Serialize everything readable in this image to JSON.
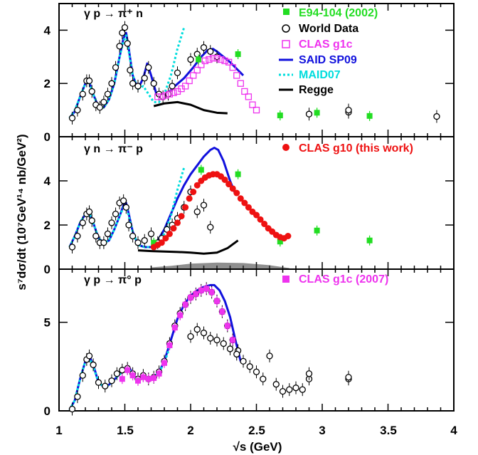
{
  "xlabel": "√s (GeV)",
  "ylabel": "s⁷dσ/dt (10⁷GeV¹⁴ nb/GeV²)",
  "x_ticks": [
    "1",
    "1.5",
    "2",
    "2.5",
    "3",
    "3.5",
    "4"
  ],
  "colors": {
    "e94": "#22dd22",
    "world": "#000000",
    "g1c": "#ee33ee",
    "said": "#1111dd",
    "maid": "#00dddd",
    "regge": "#000000",
    "g10": "#ee1111"
  },
  "chart_data": [
    {
      "type": "scatter",
      "reaction": "γ p → π⁺ n",
      "xlim": [
        1.0,
        4.0
      ],
      "ylim": [
        0,
        5.0
      ],
      "y_ticks": [
        {
          "v": 0,
          "label": "0"
        },
        {
          "v": 2,
          "label": "2"
        },
        {
          "v": 4,
          "label": "4"
        }
      ],
      "legend": [
        "E94-104 (2002)",
        "World Data",
        "CLAS g1c",
        "SAID SP09",
        "MAID07",
        "Regge"
      ],
      "series": [
        {
          "name": "World Data",
          "marker": "circle",
          "color": "world",
          "x": [
            1.1,
            1.14,
            1.18,
            1.21,
            1.23,
            1.25,
            1.28,
            1.31,
            1.34,
            1.37,
            1.4,
            1.43,
            1.46,
            1.48,
            1.5,
            1.52,
            1.54,
            1.56,
            1.6,
            1.65,
            1.68,
            1.72,
            1.76,
            1.79,
            1.83,
            1.86,
            1.9,
            2.0,
            2.05,
            2.1,
            2.15,
            2.2,
            2.9,
            3.2,
            3.2,
            3.87
          ],
          "y": [
            0.7,
            1.0,
            1.6,
            2.1,
            2.1,
            1.7,
            1.2,
            1.1,
            1.3,
            1.6,
            2.0,
            2.6,
            3.4,
            3.9,
            4.1,
            3.5,
            2.5,
            2.0,
            1.9,
            2.2,
            2.6,
            2.0,
            1.6,
            1.5,
            1.6,
            1.9,
            2.4,
            2.9,
            3.1,
            3.35,
            3.2,
            3.0,
            0.85,
            0.92,
            1.0,
            0.76
          ]
        },
        {
          "name": "CLAS g1c",
          "marker": "open-square",
          "color": "g1c",
          "x": [
            1.75,
            1.78,
            1.81,
            1.84,
            1.87,
            1.9,
            1.93,
            1.96,
            1.99,
            2.02,
            2.05,
            2.08,
            2.11,
            2.14,
            2.17,
            2.2,
            2.23,
            2.26,
            2.29,
            2.32,
            2.35,
            2.38,
            2.41,
            2.44,
            2.47,
            2.5
          ],
          "y": [
            1.5,
            1.5,
            1.55,
            1.6,
            1.65,
            1.7,
            1.8,
            1.9,
            2.1,
            2.3,
            2.5,
            2.7,
            2.85,
            2.9,
            2.95,
            2.95,
            2.9,
            2.85,
            2.8,
            2.6,
            2.3,
            2.0,
            1.7,
            1.5,
            1.2,
            1.0
          ]
        },
        {
          "name": "E94-104 (2002)",
          "marker": "filled-square",
          "color": "e94",
          "x": [
            2.06,
            2.36,
            2.68,
            2.96,
            3.36
          ],
          "y": [
            2.9,
            3.1,
            0.8,
            0.9,
            0.78
          ]
        },
        {
          "name": "SAID SP09",
          "marker": "line",
          "color": "said",
          "x": [
            1.08,
            1.12,
            1.16,
            1.2,
            1.23,
            1.26,
            1.3,
            1.34,
            1.38,
            1.42,
            1.46,
            1.49,
            1.51,
            1.53,
            1.56,
            1.6,
            1.64,
            1.67,
            1.7,
            1.74,
            1.78,
            1.82,
            1.88,
            1.95,
            2.02,
            2.08,
            2.13,
            2.17,
            2.2,
            2.25,
            2.3,
            2.36,
            2.4
          ],
          "y": [
            0.7,
            0.95,
            1.5,
            2.0,
            2.05,
            1.6,
            1.1,
            1.1,
            1.4,
            2.0,
            3.0,
            3.7,
            3.9,
            3.3,
            2.3,
            1.8,
            2.2,
            2.75,
            2.3,
            1.6,
            1.45,
            1.6,
            1.9,
            2.2,
            2.6,
            3.0,
            3.25,
            3.3,
            3.2,
            3.0,
            2.8,
            2.5,
            2.3
          ]
        },
        {
          "name": "MAID07",
          "marker": "dash",
          "color": "maid",
          "x": [
            1.08,
            1.12,
            1.16,
            1.2,
            1.23,
            1.26,
            1.3,
            1.34,
            1.38,
            1.42,
            1.46,
            1.49,
            1.51,
            1.53,
            1.56,
            1.6,
            1.64,
            1.68,
            1.72,
            1.76,
            1.8,
            1.85,
            1.9,
            1.95
          ],
          "y": [
            0.7,
            1.0,
            1.5,
            2.0,
            2.05,
            1.6,
            1.1,
            1.1,
            1.4,
            2.0,
            3.0,
            3.6,
            3.8,
            3.2,
            2.3,
            1.8,
            1.9,
            1.6,
            1.3,
            1.3,
            1.6,
            2.3,
            3.3,
            4.1
          ]
        },
        {
          "name": "Regge",
          "marker": "line",
          "color": "regge",
          "x": [
            1.72,
            1.8,
            1.9,
            2.0,
            2.1,
            2.2,
            2.28
          ],
          "y": [
            1.15,
            1.25,
            1.3,
            1.2,
            1.0,
            0.9,
            0.88
          ]
        }
      ]
    },
    {
      "type": "scatter",
      "reaction": "γ n → π⁻ p",
      "xlim": [
        1.0,
        4.0
      ],
      "ylim": [
        0,
        6.0
      ],
      "y_ticks": [
        {
          "v": 0,
          "label": "0"
        },
        {
          "v": 2,
          "label": "2"
        },
        {
          "v": 4,
          "label": "4"
        }
      ],
      "legend": [
        "CLAS g10 (this work)"
      ],
      "series": [
        {
          "name": "World Data",
          "marker": "circle",
          "color": "world",
          "x": [
            1.1,
            1.14,
            1.18,
            1.21,
            1.23,
            1.25,
            1.28,
            1.31,
            1.34,
            1.37,
            1.4,
            1.43,
            1.46,
            1.49,
            1.51,
            1.53,
            1.56,
            1.6,
            1.65,
            1.7,
            1.75,
            1.78,
            1.82,
            1.86,
            1.9,
            1.95,
            2.0,
            2.05,
            2.1,
            2.15
          ],
          "y": [
            1.0,
            1.5,
            2.1,
            2.5,
            2.6,
            2.2,
            1.5,
            1.2,
            1.2,
            1.6,
            2.1,
            2.5,
            3.0,
            3.1,
            2.8,
            2.0,
            1.5,
            1.2,
            1.3,
            1.6,
            1.2,
            1.4,
            1.8,
            2.0,
            2.3,
            2.8,
            3.5,
            2.6,
            2.9,
            1.9
          ]
        },
        {
          "name": "CLAS g10 (this work)",
          "marker": "filled-circle",
          "color": "g10",
          "x": [
            1.72,
            1.75,
            1.78,
            1.81,
            1.84,
            1.87,
            1.9,
            1.93,
            1.96,
            1.99,
            2.02,
            2.05,
            2.08,
            2.11,
            2.14,
            2.17,
            2.2,
            2.23,
            2.26,
            2.29,
            2.32,
            2.35,
            2.38,
            2.41,
            2.44,
            2.47,
            2.5,
            2.53,
            2.56,
            2.59,
            2.62,
            2.65,
            2.68,
            2.71,
            2.74
          ],
          "y": [
            1.0,
            1.1,
            1.2,
            1.4,
            1.6,
            1.85,
            2.1,
            2.4,
            2.8,
            3.2,
            3.5,
            3.8,
            4.0,
            4.15,
            4.25,
            4.3,
            4.3,
            4.2,
            4.05,
            3.85,
            3.65,
            3.45,
            3.2,
            3.0,
            2.8,
            2.6,
            2.45,
            2.25,
            2.05,
            1.85,
            1.7,
            1.55,
            1.45,
            1.4,
            1.5
          ]
        },
        {
          "name": "E94-104 (2002)",
          "marker": "filled-square",
          "color": "e94",
          "x": [
            1.72,
            2.08,
            2.36,
            2.68,
            2.96,
            3.36
          ],
          "y": [
            1.2,
            4.5,
            4.3,
            1.25,
            1.75,
            1.3
          ]
        },
        {
          "name": "SAID SP09",
          "marker": "line",
          "color": "said",
          "x": [
            1.08,
            1.12,
            1.16,
            1.2,
            1.23,
            1.26,
            1.3,
            1.34,
            1.38,
            1.42,
            1.46,
            1.49,
            1.51,
            1.53,
            1.56,
            1.6,
            1.65,
            1.7,
            1.75,
            1.8,
            1.85,
            1.9,
            1.95,
            2.0,
            2.05,
            2.1,
            2.15,
            2.18,
            2.21,
            2.25,
            2.3,
            2.34
          ],
          "y": [
            1.0,
            1.5,
            2.1,
            2.5,
            2.55,
            2.1,
            1.4,
            1.2,
            1.3,
            1.8,
            2.4,
            2.9,
            3.0,
            2.5,
            1.7,
            1.1,
            1.0,
            1.0,
            1.3,
            1.8,
            2.5,
            3.2,
            3.8,
            4.3,
            4.7,
            5.1,
            5.4,
            5.5,
            5.4,
            4.9,
            4.0,
            3.4
          ]
        },
        {
          "name": "MAID07",
          "marker": "dash",
          "color": "maid",
          "x": [
            1.08,
            1.12,
            1.16,
            1.2,
            1.23,
            1.26,
            1.3,
            1.34,
            1.38,
            1.42,
            1.46,
            1.49,
            1.51,
            1.53,
            1.56,
            1.6,
            1.65,
            1.7,
            1.75,
            1.8,
            1.85,
            1.9,
            1.95
          ],
          "y": [
            1.0,
            1.5,
            2.1,
            2.5,
            2.55,
            2.1,
            1.4,
            1.2,
            1.3,
            1.8,
            2.4,
            2.8,
            2.9,
            2.4,
            1.7,
            1.1,
            1.0,
            1.0,
            1.2,
            1.6,
            2.4,
            3.6,
            4.6
          ]
        },
        {
          "name": "Regge",
          "marker": "line",
          "color": "regge",
          "x": [
            1.6,
            1.7,
            1.8,
            1.9,
            2.0,
            2.1,
            2.2,
            2.28,
            2.36
          ],
          "y": [
            0.85,
            0.82,
            0.8,
            0.78,
            0.75,
            0.7,
            0.75,
            0.95,
            1.3
          ]
        }
      ],
      "systematic_band": {
        "x": [
          1.7,
          1.85,
          2.0,
          2.2,
          2.4,
          2.6,
          2.75
        ],
        "y": [
          0.08,
          0.15,
          0.25,
          0.3,
          0.28,
          0.18,
          0.05
        ]
      }
    },
    {
      "type": "scatter",
      "reaction": "γ p → π° p",
      "xlim": [
        1.0,
        4.0
      ],
      "ylim": [
        0,
        8.0
      ],
      "y_ticks": [
        {
          "v": 0,
          "label": "0"
        },
        {
          "v": 5,
          "label": "5"
        }
      ],
      "legend": [
        "CLAS g1c (2007)"
      ],
      "series": [
        {
          "name": "World Data",
          "marker": "circle",
          "color": "world",
          "x": [
            1.1,
            1.14,
            1.18,
            1.21,
            1.23,
            1.26,
            1.3,
            1.35,
            1.4,
            1.44,
            1.48,
            1.52,
            1.56,
            1.6,
            1.64,
            1.68,
            1.72,
            1.76,
            1.8,
            1.84,
            1.88,
            1.92,
            1.96,
            2.0,
            2.04,
            2.08,
            2.12,
            2.16,
            2.2,
            2.24,
            2.28,
            2.32,
            2.36,
            2.0,
            2.05,
            2.1,
            2.15,
            2.2,
            2.25,
            2.3,
            2.35,
            2.4,
            2.45,
            2.5,
            2.55,
            2.6,
            2.65,
            2.7,
            2.75,
            2.8,
            2.85,
            2.9,
            2.9,
            3.2,
            3.2
          ],
          "y": [
            0.1,
            0.8,
            2.0,
            2.9,
            3.1,
            2.6,
            1.6,
            1.4,
            1.7,
            2.1,
            2.3,
            2.4,
            2.1,
            1.8,
            2.0,
            1.8,
            1.9,
            2.2,
            2.8,
            3.8,
            4.8,
            5.5,
            6.0,
            6.4,
            6.6,
            6.8,
            6.9,
            6.7,
            6.2,
            5.6,
            4.8,
            4.0,
            3.4,
            4.2,
            4.6,
            4.4,
            4.1,
            4.0,
            3.8,
            3.5,
            3.2,
            2.8,
            2.5,
            2.2,
            1.8,
            3.1,
            1.5,
            1.1,
            1.2,
            1.3,
            1.2,
            1.8,
            2.1,
            1.8,
            1.9
          ]
        },
        {
          "name": "CLAS g1c (2007)",
          "marker": "filled-square",
          "color": "g1c",
          "x": [
            1.48,
            1.52,
            1.56,
            1.6,
            1.64,
            1.68,
            1.72,
            1.76,
            1.8,
            1.84,
            1.88,
            1.92,
            1.96,
            2.0,
            2.04,
            2.08,
            2.12,
            2.16,
            2.2,
            2.24,
            2.28,
            2.32
          ],
          "y": [
            1.8,
            2.3,
            2.0,
            1.7,
            1.9,
            1.8,
            1.85,
            2.1,
            2.7,
            3.7,
            4.7,
            5.4,
            6.0,
            6.4,
            6.6,
            6.8,
            6.9,
            6.7,
            6.2,
            5.6,
            4.8,
            4.0
          ]
        },
        {
          "name": "SAID SP09",
          "marker": "line",
          "color": "said",
          "x": [
            1.08,
            1.12,
            1.16,
            1.2,
            1.23,
            1.26,
            1.3,
            1.35,
            1.4,
            1.45,
            1.5,
            1.53,
            1.56,
            1.6,
            1.64,
            1.68,
            1.72,
            1.76,
            1.8,
            1.85,
            1.9,
            1.95,
            2.0,
            2.05,
            2.1,
            2.15,
            2.18,
            2.22,
            2.26,
            2.3,
            2.34,
            2.38
          ],
          "y": [
            0.05,
            0.6,
            1.8,
            2.8,
            3.1,
            2.6,
            1.6,
            1.3,
            1.6,
            2.0,
            2.4,
            2.5,
            2.1,
            1.7,
            1.9,
            1.8,
            1.9,
            2.2,
            2.8,
            4.0,
            5.2,
            6.0,
            6.5,
            6.8,
            7.0,
            7.1,
            7.1,
            6.8,
            6.2,
            5.3,
            4.0,
            2.8
          ]
        },
        {
          "name": "MAID07",
          "marker": "dash",
          "color": "maid",
          "x": [
            1.08,
            1.12,
            1.16,
            1.2,
            1.23,
            1.26,
            1.3,
            1.35,
            1.4,
            1.45,
            1.5,
            1.53,
            1.56,
            1.6,
            1.64,
            1.68,
            1.72,
            1.76,
            1.8,
            1.85
          ],
          "y": [
            0.05,
            0.6,
            1.8,
            2.8,
            3.0,
            2.5,
            1.6,
            1.3,
            1.6,
            2.0,
            2.3,
            2.4,
            2.0,
            1.7,
            1.9,
            1.8,
            1.9,
            2.2,
            2.7,
            3.8
          ]
        }
      ]
    }
  ]
}
